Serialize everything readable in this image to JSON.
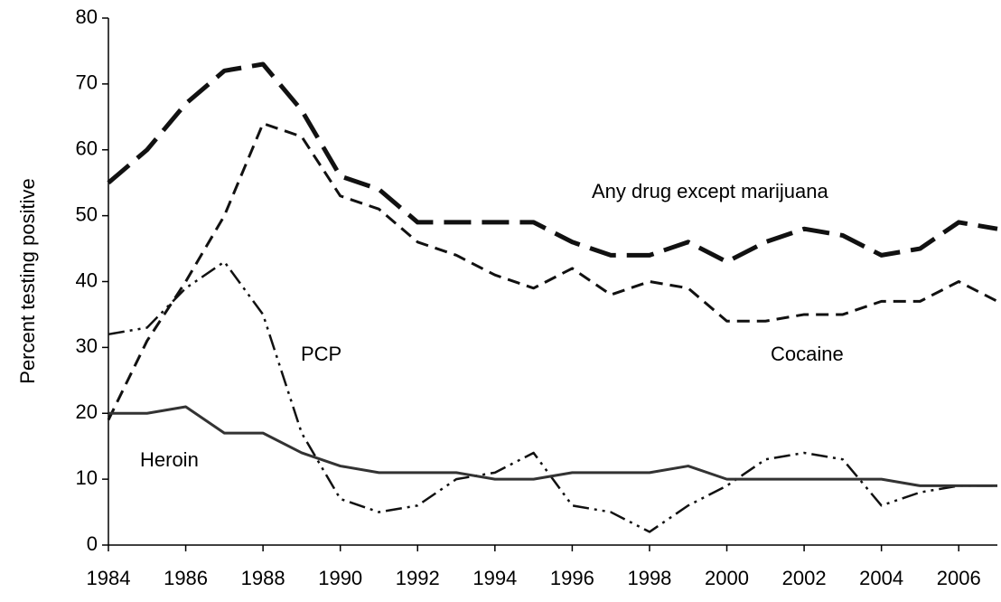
{
  "chart_data": {
    "type": "line",
    "y_label": "Percent testing positive",
    "x": [
      1984,
      1985,
      1986,
      1987,
      1988,
      1989,
      1990,
      1991,
      1992,
      1993,
      1994,
      1995,
      1996,
      1997,
      1998,
      1999,
      2000,
      2001,
      2002,
      2003,
      2004,
      2005,
      2006,
      2007
    ],
    "xlim": [
      1984,
      2007
    ],
    "xticks": [
      1984,
      1986,
      1988,
      1990,
      1992,
      1994,
      1996,
      1998,
      2000,
      2002,
      2004,
      2006
    ],
    "ylim": [
      0,
      80
    ],
    "yticks": [
      0,
      10,
      20,
      30,
      40,
      50,
      60,
      70,
      80
    ],
    "series": [
      {
        "name": "Any drug except marijuana",
        "color": "#111111",
        "values": [
          55,
          60,
          67,
          72,
          73,
          66,
          56,
          54,
          49,
          49,
          49,
          49,
          46,
          44,
          44,
          46,
          43,
          46,
          48,
          47,
          44,
          45,
          49,
          48
        ]
      },
      {
        "name": "Cocaine",
        "color": "#111111",
        "values": [
          19,
          31,
          40,
          50,
          64,
          62,
          53,
          51,
          46,
          44,
          41,
          39,
          42,
          38,
          40,
          39,
          34,
          34,
          35,
          35,
          37,
          37,
          40,
          37
        ]
      },
      {
        "name": "PCP",
        "color": "#111111",
        "values": [
          32,
          33,
          39,
          43,
          35,
          17,
          7,
          5,
          6,
          10,
          11,
          14,
          6,
          5,
          2,
          6,
          9,
          13,
          14,
          13,
          6,
          8,
          9,
          9
        ]
      },
      {
        "name": "Heroin",
        "color": "#333333",
        "values": [
          20,
          20,
          21,
          17,
          17,
          14,
          12,
          11,
          11,
          11,
          10,
          10,
          11,
          11,
          11,
          12,
          10,
          10,
          10,
          10,
          10,
          9,
          9,
          9
        ]
      }
    ]
  }
}
